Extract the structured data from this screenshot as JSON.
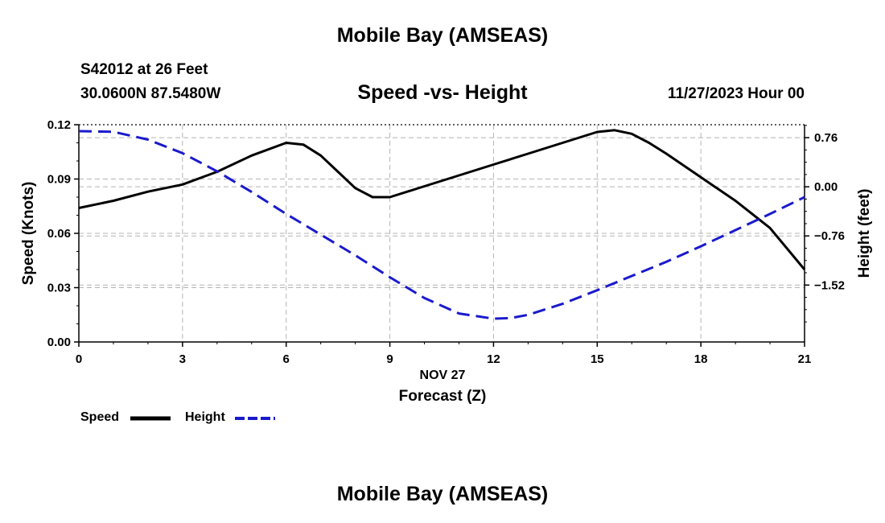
{
  "header": {
    "title": "Mobile Bay (AMSEAS)",
    "station": "S42012 at 26 Feet",
    "coords": "30.0600N  87.5480W",
    "subtitle": "Speed -vs- Height",
    "datetime": "11/27/2023 Hour 00"
  },
  "footer": {
    "title": "Mobile Bay (AMSEAS)"
  },
  "legend": {
    "speed_label": "Speed",
    "height_label": "Height"
  },
  "colors": {
    "speed": "#000000",
    "height": "#1a1acc",
    "grid": "#b4b4b4"
  },
  "chart_data": {
    "type": "line",
    "title": "Speed -vs- Height",
    "xlabel": "Forecast (Z)",
    "date_label": "NOV 27",
    "ylabel_left": "Speed (Knots)",
    "ylabel_right": "Height (feet)",
    "xlim": [
      0,
      21
    ],
    "x_ticks": [
      0,
      3,
      6,
      9,
      12,
      15,
      18,
      21
    ],
    "x_tick_labels": [
      "0",
      "3",
      "6",
      "9",
      "12",
      "15",
      "18",
      "21"
    ],
    "ylim_left": [
      0,
      0.12
    ],
    "y_ticks_left": [
      0,
      0.03,
      0.06,
      0.09,
      0.12
    ],
    "y_tick_labels_left": [
      "0.00",
      "0.03",
      "0.06",
      "0.09",
      "0.12"
    ],
    "ylim_right": [
      -2.4,
      0.96
    ],
    "y_ticks_right": [
      -1.52,
      -0.76,
      0.0,
      0.76
    ],
    "y_tick_labels_right": [
      "−1.52",
      "−0.76",
      "0.00",
      "0.76"
    ],
    "grid": true,
    "series": [
      {
        "name": "Speed",
        "axis": "left",
        "style": "solid",
        "x": [
          0,
          1,
          2,
          3,
          4,
          5,
          6,
          6.5,
          7,
          7.5,
          8,
          8.5,
          9,
          10,
          11,
          12,
          13,
          14,
          15,
          15.5,
          16,
          16.5,
          17,
          18,
          19,
          20,
          21
        ],
        "values": [
          0.074,
          0.078,
          0.083,
          0.087,
          0.094,
          0.103,
          0.11,
          0.109,
          0.103,
          0.094,
          0.085,
          0.08,
          0.08,
          0.086,
          0.092,
          0.098,
          0.104,
          0.11,
          0.116,
          0.117,
          0.115,
          0.11,
          0.104,
          0.091,
          0.078,
          0.063,
          0.04
        ]
      },
      {
        "name": "Height",
        "axis": "right",
        "style": "dashed",
        "x": [
          0,
          1,
          2,
          3,
          4,
          5,
          6,
          7,
          8,
          9,
          10,
          11,
          12,
          12.5,
          13,
          14,
          15,
          16,
          17,
          18,
          19,
          20,
          21
        ],
        "values": [
          0.86,
          0.85,
          0.73,
          0.52,
          0.24,
          -0.08,
          -0.42,
          -0.74,
          -1.06,
          -1.4,
          -1.72,
          -1.96,
          -2.04,
          -2.03,
          -1.98,
          -1.81,
          -1.6,
          -1.38,
          -1.16,
          -0.92,
          -0.67,
          -0.42,
          -0.16
        ]
      }
    ]
  }
}
